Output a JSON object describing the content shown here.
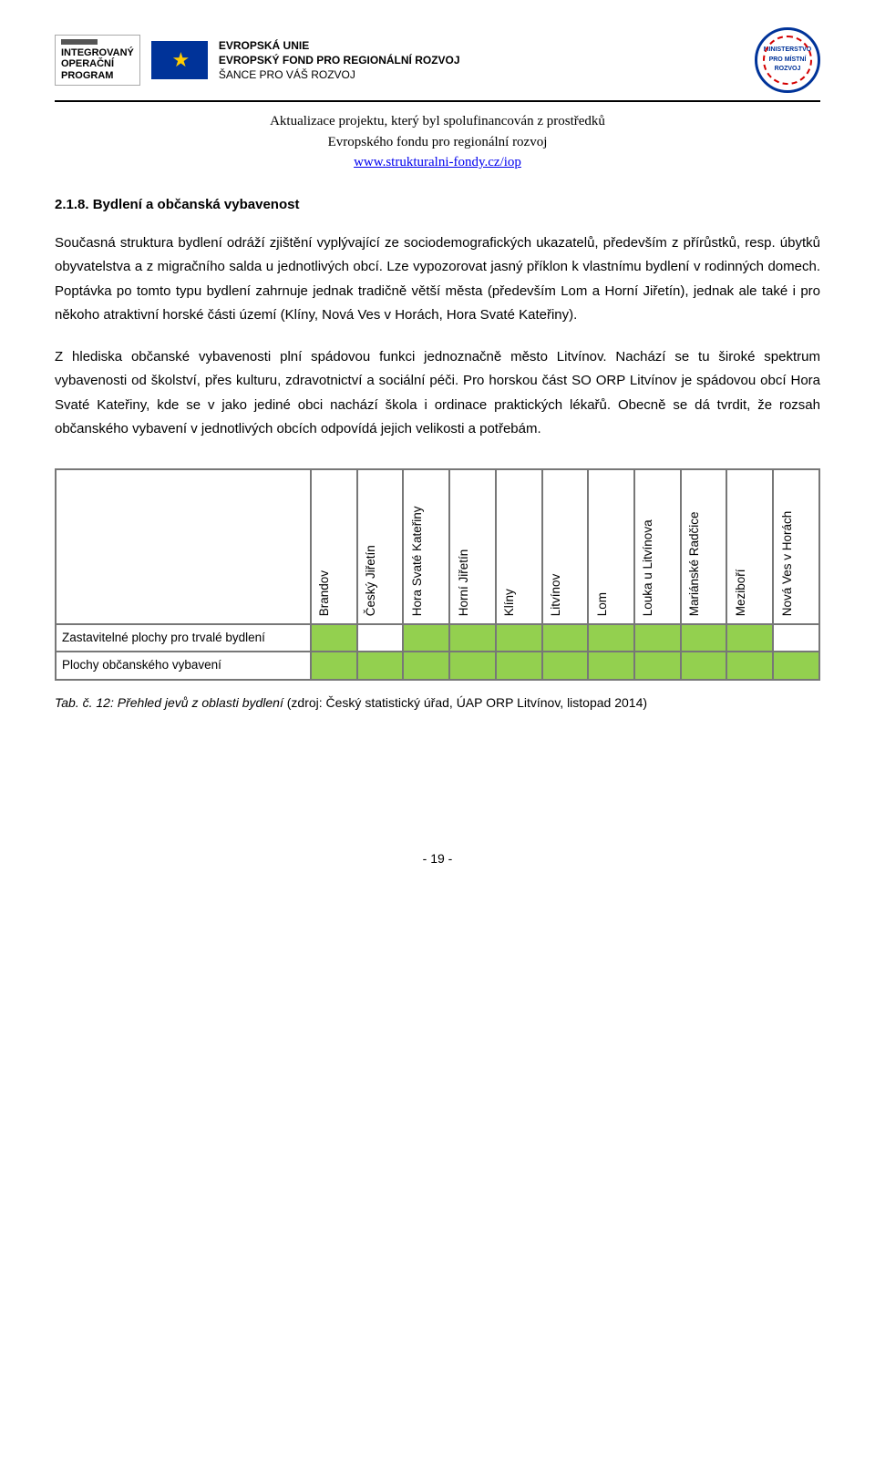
{
  "header": {
    "iop_lines": [
      "INTEGROVANÝ",
      "OPERAČNÍ",
      "PROGRAM"
    ],
    "eu_line1": "EVROPSKÁ UNIE",
    "eu_line2": "EVROPSKÝ FOND PRO REGIONÁLNÍ ROZVOJ",
    "eu_line3": "ŠANCE PRO VÁŠ ROZVOJ",
    "mmr_text": "MINISTERSTVO PRO MÍSTNÍ ROZVOJ",
    "sub_line1": "Aktualizace projektu, který byl spolufinancován z prostředků",
    "sub_line2": "Evropského fondu pro regionální rozvoj",
    "sub_link": "www.strukturalni-fondy.cz/iop"
  },
  "section": {
    "number_title": "2.1.8.  Bydlení a občanská vybavenost",
    "para1": "Současná struktura bydlení odráží zjištění vyplývající ze sociodemografických ukazatelů, především z přírůstků, resp. úbytků obyvatelstva a z migračního salda u jednotlivých obcí. Lze vypozorovat jasný příklon k vlastnímu bydlení v rodinných domech. Poptávka po tomto typu bydlení zahrnuje jednak tradičně větší města (především Lom a Horní Jiřetín), jednak ale také i pro někoho atraktivní horské části území (Klíny, Nová Ves v Horách, Hora Svaté Kateřiny).",
    "para2": "Z hlediska občanské vybavenosti plní spádovou funkci jednoznačně město Litvínov. Nachází se tu široké spektrum vybavenosti od školství, přes kulturu, zdravotnictví a sociální péči. Pro horskou část SO ORP Litvínov je spádovou obcí Hora Svaté Kateřiny, kde se v jako jediné obci nachází škola i ordinace praktických lékařů. Obecně se dá tvrdit, že rozsah občanského vybavení v jednotlivých obcích odpovídá jejich velikosti a potřebám."
  },
  "matrix": {
    "columns": [
      "Brandov",
      "Český Jiřetín",
      "Hora Svaté Kateřiny",
      "Horní Jiřetín",
      "Klíny",
      "Litvínov",
      "Lom",
      "Louka u Litvínova",
      "Mariánské Radčice",
      "Meziboří",
      "Nová Ves v Horách"
    ],
    "rows": [
      {
        "label": "Zastavitelné plochy pro trvalé bydlení",
        "cells": [
          true,
          false,
          true,
          true,
          true,
          true,
          true,
          true,
          true,
          true,
          false
        ]
      },
      {
        "label": "Plochy občanského vybavení",
        "cells": [
          true,
          true,
          true,
          true,
          true,
          true,
          true,
          true,
          true,
          true,
          true
        ]
      }
    ],
    "fill_color": "#93d04f",
    "border_color": "#777777"
  },
  "caption": {
    "prefix_italic": "Tab. č. 12: Přehled jevů z oblasti bydlení ",
    "source": "(zdroj: Český statistický úřad, ÚAP ORP Litvínov, listopad 2014)"
  },
  "page_number": "- 19 -"
}
